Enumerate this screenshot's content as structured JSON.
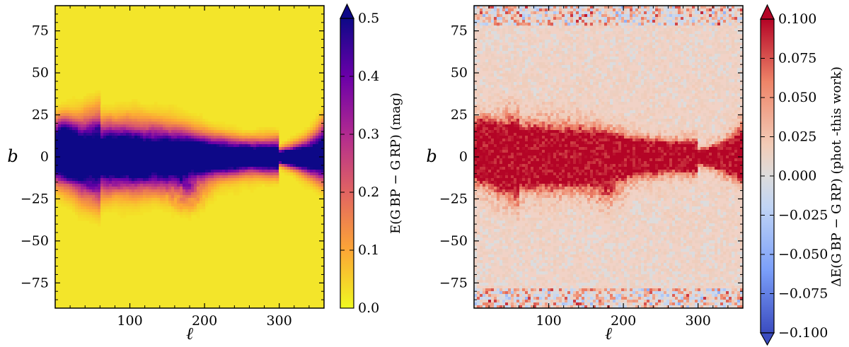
{
  "chart_data": [
    {
      "type": "heatmap",
      "title": "",
      "xlabel": "ℓ",
      "ylabel": "b",
      "xlim": [
        0,
        360
      ],
      "ylim": [
        -90,
        90
      ],
      "xticks": [
        100,
        200,
        300
      ],
      "xtick_labels": [
        "100",
        "200",
        "300"
      ],
      "yticks": [
        75,
        50,
        25,
        0,
        -25,
        -50,
        -75
      ],
      "ytick_labels": [
        "75",
        "50",
        "25",
        "0",
        "−25",
        "−50",
        "−75"
      ],
      "colormap": "plasma_r",
      "colorbar": {
        "label": "E(G_BP − G_RP) (mag)",
        "label_display": "E(G BP − G RP) (mag)",
        "range": [
          0.0,
          0.5
        ],
        "ticks": [
          0.0,
          0.1,
          0.2,
          0.3,
          0.4,
          0.5
        ],
        "tick_labels": [
          "0.0",
          "0.1",
          "0.2",
          "0.3",
          "0.4",
          "0.5"
        ],
        "extend": "max",
        "colors": [
          "#f0f921",
          "#fca636",
          "#e16462",
          "#b12a90",
          "#6a00a8",
          "#0d0887"
        ]
      }
    },
    {
      "type": "heatmap",
      "title": "",
      "xlabel": "ℓ",
      "ylabel": "b",
      "xlim": [
        0,
        360
      ],
      "ylim": [
        -90,
        90
      ],
      "xticks": [
        100,
        200,
        300
      ],
      "xtick_labels": [
        "100",
        "200",
        "300"
      ],
      "yticks": [
        75,
        50,
        25,
        0,
        -25,
        -50,
        -75
      ],
      "ytick_labels": [
        "75",
        "50",
        "25",
        "0",
        "−25",
        "−50",
        "−75"
      ],
      "colormap": "coolwarm",
      "colorbar": {
        "label": "ΔE(G_BP − G_RP) (phot -this work)",
        "label_display": "ΔE(G BP − G RP) (phot -this work)",
        "range": [
          -0.1,
          0.1
        ],
        "ticks": [
          0.1,
          0.075,
          0.05,
          0.025,
          0.0,
          -0.025,
          -0.05,
          -0.075,
          -0.1
        ],
        "tick_labels": [
          "0.100",
          "0.075",
          "0.050",
          "0.025",
          "0.000",
          "−0.025",
          "−0.050",
          "−0.075",
          "−0.100"
        ],
        "extend": "both",
        "colors": [
          "#3b4cc0",
          "#7b9ff9",
          "#c0d4f5",
          "#dddcdc",
          "#f2cbb7",
          "#ee8468",
          "#b40426"
        ]
      }
    }
  ]
}
